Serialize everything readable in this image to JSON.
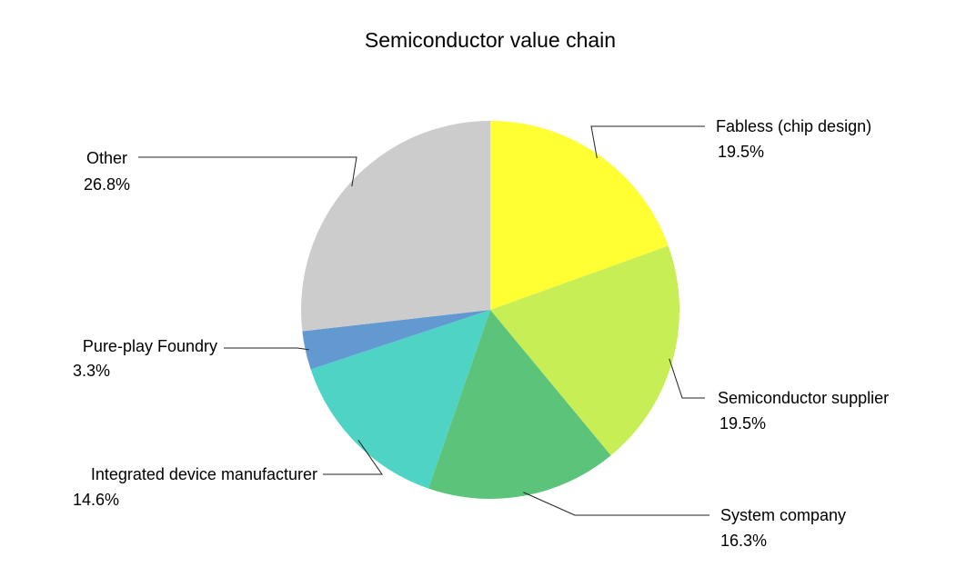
{
  "chart_data": {
    "type": "pie",
    "title": "Semiconductor value chain",
    "start_angle_deg": 0,
    "direction": "clockwise",
    "slices": [
      {
        "label": "Fabless (chip design)",
        "value": 19.5,
        "value_label": "19.5%",
        "color": "#FFFF33"
      },
      {
        "label": "Semiconductor supplier",
        "value": 19.5,
        "value_label": "19.5%",
        "color": "#C8EE55"
      },
      {
        "label": "System company",
        "value": 16.3,
        "value_label": "16.3%",
        "color": "#5CC47A"
      },
      {
        "label": "Integrated device manufacturer",
        "value": 14.6,
        "value_label": "14.6%",
        "color": "#4ED3C4"
      },
      {
        "label": "Pure-play Foundry",
        "value": 3.3,
        "value_label": "3.3%",
        "color": "#6399D1"
      },
      {
        "label": "Other",
        "value": 26.8,
        "value_label": "26.8%",
        "color": "#CCCCCC"
      }
    ]
  }
}
